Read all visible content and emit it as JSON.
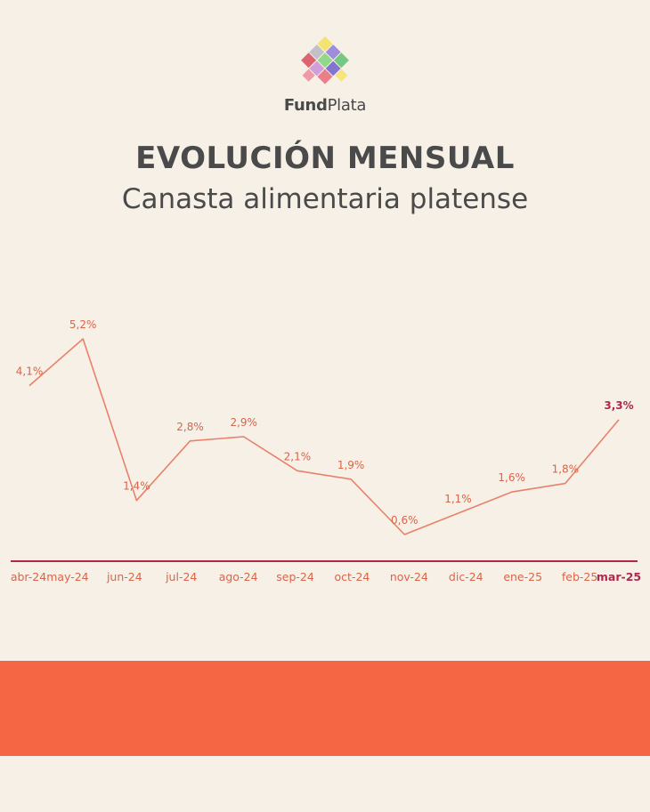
{
  "brand": {
    "bold": "Fund",
    "light": "Plata"
  },
  "title": "EVOLUCIÓN MENSUAL",
  "subtitle": "Canasta alimentaria platense",
  "colors": {
    "background": "#f6f0e6",
    "line": "#e8826a",
    "label": "#d9654a",
    "highlight": "#b0274e",
    "text": "#4a4a4a",
    "band": "#f46644"
  },
  "chart_data": {
    "type": "line",
    "categories": [
      "abr-24",
      "may-24",
      "jun-24",
      "jul-24",
      "ago-24",
      "sep-24",
      "oct-24",
      "nov-24",
      "dic-24",
      "ene-25",
      "feb-25",
      "mar-25"
    ],
    "values": [
      4.1,
      5.2,
      1.4,
      2.8,
      2.9,
      2.1,
      1.9,
      0.6,
      1.1,
      1.6,
      1.8,
      3.3
    ],
    "data_labels": [
      "4,1%",
      "5,2%",
      "1,4%",
      "2,8%",
      "2,9%",
      "2,1%",
      "1,9%",
      "0,6%",
      "1,1%",
      "1,6%",
      "1,8%",
      "3,3%"
    ],
    "highlight_last": true,
    "grid": false,
    "legend": "none"
  }
}
